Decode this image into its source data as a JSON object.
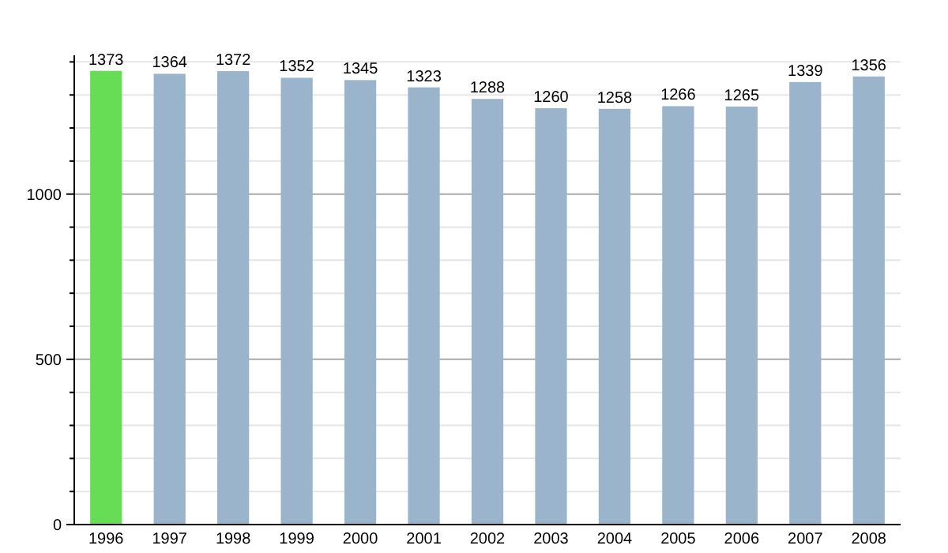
{
  "chart_data": {
    "type": "bar",
    "categories": [
      "1996",
      "1997",
      "1998",
      "1999",
      "2000",
      "2001",
      "2002",
      "2003",
      "2004",
      "2005",
      "2006",
      "2007",
      "2008"
    ],
    "values": [
      1373,
      1364,
      1372,
      1352,
      1345,
      1323,
      1288,
      1260,
      1258,
      1266,
      1265,
      1339,
      1356
    ],
    "colors": [
      "#66dd55",
      "#9ab4cc",
      "#9ab4cc",
      "#9ab4cc",
      "#9ab4cc",
      "#9ab4cc",
      "#9ab4cc",
      "#9ab4cc",
      "#9ab4cc",
      "#9ab4cc",
      "#9ab4cc",
      "#9ab4cc",
      "#9ab4cc"
    ],
    "ylim": [
      0,
      1420
    ],
    "yticks": [
      0,
      {
        "value": 100,
        "label": null
      },
      {
        "value": 200,
        "label": null
      },
      {
        "value": 300,
        "label": null
      },
      {
        "value": 400,
        "label": null
      },
      500,
      {
        "value": 600,
        "label": null
      },
      {
        "value": 700,
        "label": null
      },
      {
        "value": 800,
        "label": null
      },
      {
        "value": 900,
        "label": null
      },
      1000,
      {
        "value": 1100,
        "label": null
      },
      {
        "value": 1200,
        "label": null
      },
      {
        "value": 1300,
        "label": null
      },
      {
        "value": 1400,
        "label": null
      }
    ],
    "grid": "y",
    "data_labels": true
  }
}
